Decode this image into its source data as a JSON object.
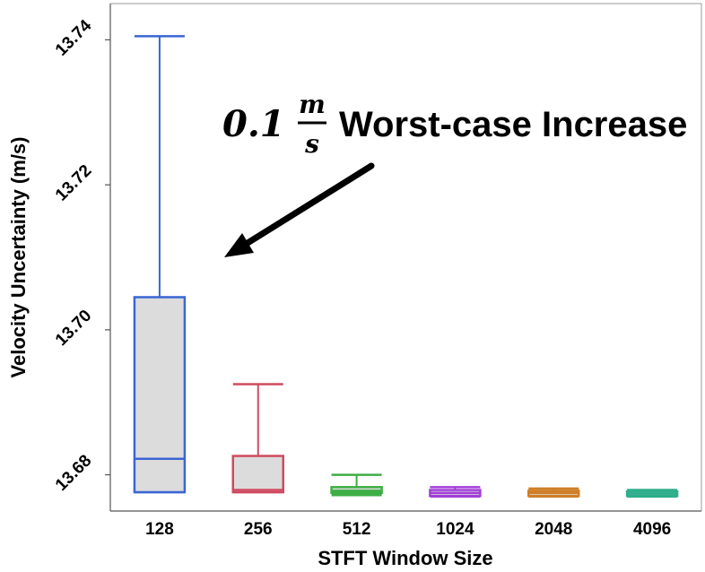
{
  "chart_data": {
    "type": "box",
    "xlabel": "STFT Window Size",
    "ylabel": "Velocity Uncertainty (m/s)",
    "ylim": [
      13.675,
      13.745
    ],
    "yticks": [
      "13.68",
      "13.70",
      "13.72",
      "13.74"
    ],
    "ytick_values": [
      13.68,
      13.7,
      13.72,
      13.74
    ],
    "categories": [
      "128",
      "256",
      "512",
      "1024",
      "2048",
      "4096"
    ],
    "series": [
      {
        "category": "128",
        "min": 13.6776,
        "q1": 13.6776,
        "median": 13.6822,
        "q3": 13.7045,
        "max": 13.7405,
        "color": "#3a66d4"
      },
      {
        "category": "256",
        "min": 13.6776,
        "q1": 13.6776,
        "median": 13.6779,
        "q3": 13.6826,
        "max": 13.6925,
        "color": "#d04a60"
      },
      {
        "category": "512",
        "min": 13.6772,
        "q1": 13.6775,
        "median": 13.6778,
        "q3": 13.6783,
        "max": 13.68,
        "color": "#3dae45"
      },
      {
        "category": "1024",
        "min": 13.677,
        "q1": 13.6771,
        "median": 13.6775,
        "q3": 13.6779,
        "max": 13.6783,
        "color": "#a23fd9"
      },
      {
        "category": "2048",
        "min": 13.677,
        "q1": 13.6771,
        "median": 13.6775,
        "q3": 13.6778,
        "max": 13.6781,
        "color": "#cf7f28"
      },
      {
        "category": "4096",
        "min": 13.677,
        "q1": 13.6771,
        "median": 13.6774,
        "q3": 13.6777,
        "max": 13.6779,
        "color": "#2eae8c"
      }
    ],
    "box_fill": "#dcdcdc",
    "grid": false,
    "annotation": {
      "prefix": "0.1",
      "fraction_num": "m",
      "fraction_den": "s",
      "text": "Worst-case Increase"
    }
  }
}
